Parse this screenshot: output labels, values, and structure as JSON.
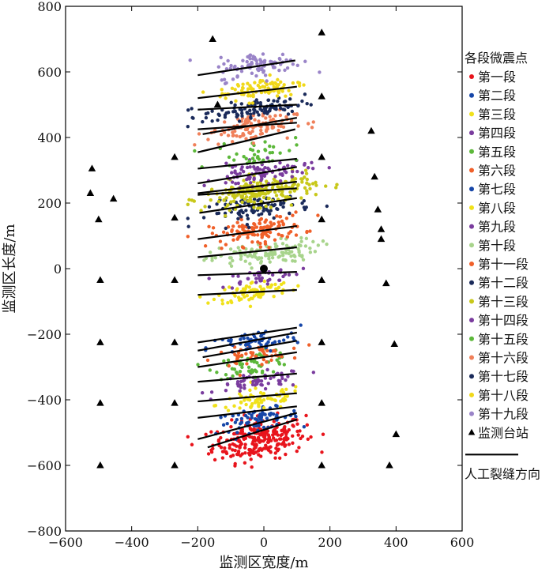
{
  "chart_data": {
    "type": "scatter",
    "xlabel": "监测区宽度/m",
    "ylabel": "监测区长度/m",
    "xlim": [
      -600,
      600
    ],
    "ylim": [
      -800,
      800
    ],
    "xticks": [
      "−600",
      "−400",
      "−200",
      "0",
      "200",
      "400",
      "600"
    ],
    "yticks": [
      "800",
      "600",
      "400",
      "200",
      "0",
      "−200",
      "−400",
      "−600",
      "−800"
    ],
    "grid": false,
    "legend": {
      "position": "right",
      "title": "各段微震点",
      "station_label": "监测台站",
      "fracture_label": "人工裂缝方向"
    },
    "stages": [
      {
        "name": "第一段",
        "color": "#e8141c",
        "center": [
          -15,
          -520
        ],
        "spread": [
          100,
          45
        ],
        "count": 260
      },
      {
        "name": "第二段",
        "color": "#1646a8",
        "center": [
          -20,
          -460
        ],
        "spread": [
          90,
          22
        ],
        "count": 70
      },
      {
        "name": "第三段",
        "color": "#f0e11a",
        "center": [
          -10,
          -400
        ],
        "spread": [
          95,
          25
        ],
        "count": 70
      },
      {
        "name": "第四段",
        "color": "#7a3c9e",
        "center": [
          -10,
          -345
        ],
        "spread": [
          95,
          20
        ],
        "count": 60
      },
      {
        "name": "第五段",
        "color": "#5cb83a",
        "center": [
          -30,
          -290
        ],
        "spread": [
          85,
          25
        ],
        "count": 60
      },
      {
        "name": "第六段",
        "color": "#f0602a",
        "center": [
          -40,
          -265
        ],
        "spread": [
          80,
          20
        ],
        "count": 50
      },
      {
        "name": "第七段",
        "color": "#1646a8",
        "center": [
          -30,
          -225
        ],
        "spread": [
          100,
          25
        ],
        "count": 60
      },
      {
        "name": "第八段",
        "color": "#f0e11a",
        "center": [
          -30,
          -70
        ],
        "spread": [
          80,
          22
        ],
        "count": 80
      },
      {
        "name": "第九段",
        "color": "#7a3c9e",
        "center": [
          -10,
          -25
        ],
        "spread": [
          85,
          18
        ],
        "count": 40
      },
      {
        "name": "第十段",
        "color": "#a8d48c",
        "center": [
          0,
          45
        ],
        "spread": [
          115,
          25
        ],
        "count": 120
      },
      {
        "name": "第十一段",
        "color": "#f0602a",
        "center": [
          -20,
          115
        ],
        "spread": [
          100,
          30
        ],
        "count": 130
      },
      {
        "name": "第十二段",
        "color": "#1a2a5a",
        "center": [
          -10,
          185
        ],
        "spread": [
          110,
          25
        ],
        "count": 90
      },
      {
        "name": "第十三段",
        "color": "#c8c81a",
        "center": [
          -10,
          235
        ],
        "spread": [
          120,
          30
        ],
        "count": 220
      },
      {
        "name": "第十四段",
        "color": "#7a3c9e",
        "center": [
          -10,
          290
        ],
        "spread": [
          100,
          25
        ],
        "count": 90
      },
      {
        "name": "第十五段",
        "color": "#5cb83a",
        "center": [
          -20,
          355
        ],
        "spread": [
          90,
          30
        ],
        "count": 40
      },
      {
        "name": "第十六段",
        "color": "#f0805a",
        "center": [
          -40,
          430
        ],
        "spread": [
          95,
          30
        ],
        "count": 110
      },
      {
        "name": "第十七段",
        "color": "#1a2a5a",
        "center": [
          -30,
          485
        ],
        "spread": [
          110,
          20
        ],
        "count": 100
      },
      {
        "name": "第十八段",
        "color": "#f0d81a",
        "center": [
          -10,
          550
        ],
        "spread": [
          95,
          25
        ],
        "count": 90
      },
      {
        "name": "第十九段",
        "color": "#9a84c8",
        "center": [
          -10,
          620
        ],
        "spread": [
          90,
          28
        ],
        "count": 90
      }
    ],
    "origin_point": {
      "x": 0,
      "y": 0
    },
    "stations": [
      {
        "x": -155,
        "y": 700
      },
      {
        "x": 175,
        "y": 720
      },
      {
        "x": -140,
        "y": 500
      },
      {
        "x": 175,
        "y": 525
      },
      {
        "x": 325,
        "y": 420
      },
      {
        "x": -270,
        "y": 340
      },
      {
        "x": 175,
        "y": 340
      },
      {
        "x": -520,
        "y": 305
      },
      {
        "x": 335,
        "y": 280
      },
      {
        "x": -525,
        "y": 230
      },
      {
        "x": -455,
        "y": 213
      },
      {
        "x": -500,
        "y": 150
      },
      {
        "x": -270,
        "y": 155
      },
      {
        "x": 175,
        "y": 150
      },
      {
        "x": 345,
        "y": 180
      },
      {
        "x": 355,
        "y": 120
      },
      {
        "x": 355,
        "y": 90
      },
      {
        "x": -495,
        "y": -35
      },
      {
        "x": -270,
        "y": -35
      },
      {
        "x": 175,
        "y": -35
      },
      {
        "x": 370,
        "y": -45
      },
      {
        "x": -495,
        "y": -225
      },
      {
        "x": -270,
        "y": -225
      },
      {
        "x": 175,
        "y": -225
      },
      {
        "x": 395,
        "y": -230
      },
      {
        "x": -495,
        "y": -410
      },
      {
        "x": -270,
        "y": -410
      },
      {
        "x": 175,
        "y": -410
      },
      {
        "x": 400,
        "y": -505
      },
      {
        "x": -495,
        "y": -600
      },
      {
        "x": -270,
        "y": -600
      },
      {
        "x": 175,
        "y": -600
      },
      {
        "x": 380,
        "y": -600
      }
    ],
    "fracture_lines": [
      [
        [
          -200,
          590
        ],
        [
          95,
          635
        ]
      ],
      [
        [
          -200,
          520
        ],
        [
          100,
          555
        ]
      ],
      [
        [
          -200,
          485
        ],
        [
          100,
          500
        ]
      ],
      [
        [
          -200,
          425
        ],
        [
          100,
          445
        ]
      ],
      [
        [
          -185,
          410
        ],
        [
          100,
          460
        ]
      ],
      [
        [
          -200,
          355
        ],
        [
          95,
          425
        ]
      ],
      [
        [
          -200,
          305
        ],
        [
          100,
          335
        ]
      ],
      [
        [
          -200,
          260
        ],
        [
          100,
          310
        ]
      ],
      [
        [
          -200,
          230
        ],
        [
          100,
          265
        ]
      ],
      [
        [
          -200,
          225
        ],
        [
          100,
          245
        ]
      ],
      [
        [
          -195,
          170
        ],
        [
          100,
          215
        ]
      ],
      [
        [
          -200,
          90
        ],
        [
          100,
          130
        ]
      ],
      [
        [
          -200,
          35
        ],
        [
          100,
          65
        ]
      ],
      [
        [
          -200,
          -20
        ],
        [
          100,
          -10
        ]
      ],
      [
        [
          -200,
          -80
        ],
        [
          100,
          -65
        ]
      ],
      [
        [
          -200,
          -225
        ],
        [
          100,
          -180
        ]
      ],
      [
        [
          -200,
          -250
        ],
        [
          100,
          -195
        ]
      ],
      [
        [
          -185,
          -270
        ],
        [
          100,
          -220
        ]
      ],
      [
        [
          -200,
          -300
        ],
        [
          100,
          -255
        ]
      ],
      [
        [
          -200,
          -345
        ],
        [
          100,
          -320
        ]
      ],
      [
        [
          -200,
          -405
        ],
        [
          100,
          -380
        ]
      ],
      [
        [
          -200,
          -455
        ],
        [
          100,
          -420
        ]
      ],
      [
        [
          -200,
          -520
        ],
        [
          100,
          -440
        ]
      ],
      [
        [
          -170,
          -545
        ],
        [
          100,
          -460
        ]
      ]
    ]
  }
}
